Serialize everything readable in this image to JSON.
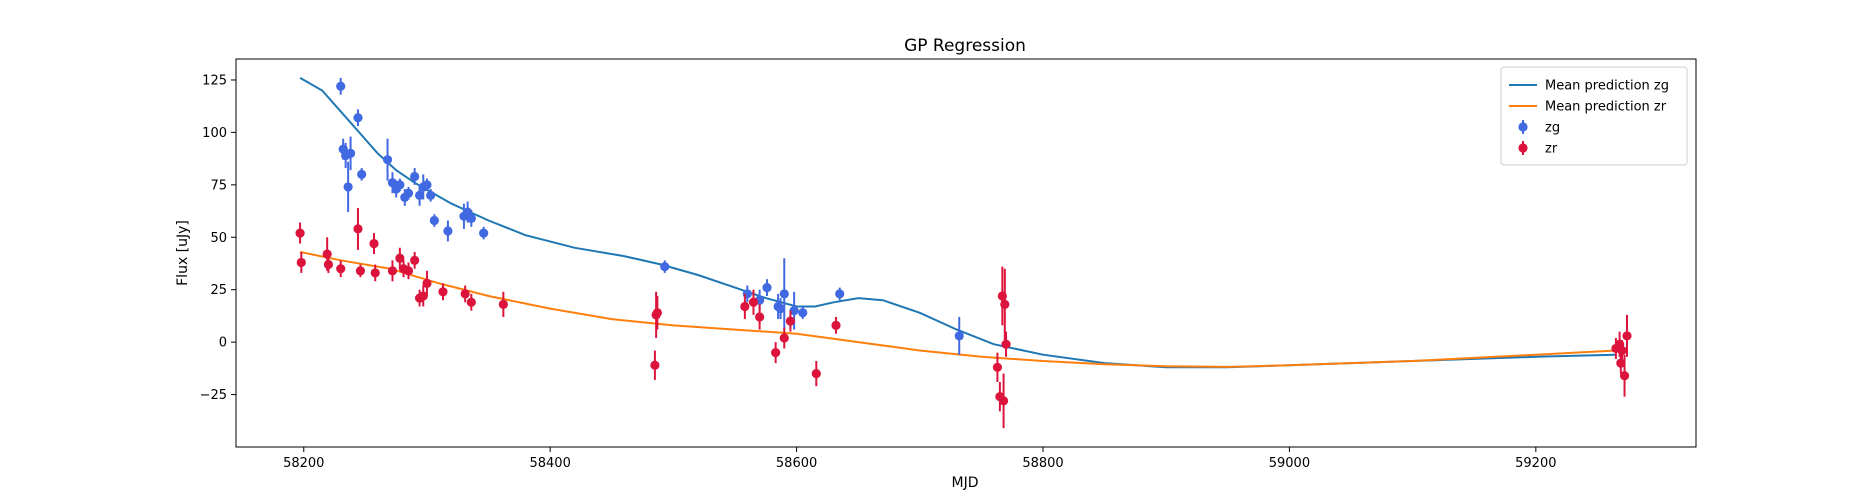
{
  "chart_data": {
    "type": "scatter",
    "title": "GP Regression",
    "xlabel": "MJD",
    "ylabel": "Flux [uJy]",
    "xlim": [
      58145,
      59330
    ],
    "ylim": [
      -50,
      135
    ],
    "xticks": [
      58200,
      58400,
      58600,
      58800,
      59000,
      59200
    ],
    "yticks": [
      -25,
      0,
      25,
      50,
      75,
      100,
      125
    ],
    "grid": false,
    "legend_position": "top-right",
    "legend": [
      {
        "label": "Mean prediction zg",
        "kind": "line",
        "color": "#1f77b4"
      },
      {
        "label": "Mean prediction zr",
        "kind": "line",
        "color": "#ff7f0e"
      },
      {
        "label": "zg",
        "kind": "marker",
        "color": "#4169e1"
      },
      {
        "label": "zr",
        "kind": "marker",
        "color": "#dc143c"
      }
    ],
    "lines": [
      {
        "name": "Mean prediction zg",
        "color": "#1f77b4",
        "points": [
          [
            58197,
            126
          ],
          [
            58215,
            120
          ],
          [
            58230,
            110
          ],
          [
            58245,
            100
          ],
          [
            58260,
            90
          ],
          [
            58275,
            82
          ],
          [
            58290,
            76
          ],
          [
            58305,
            71
          ],
          [
            58320,
            66
          ],
          [
            58335,
            62
          ],
          [
            58350,
            58
          ],
          [
            58380,
            51
          ],
          [
            58420,
            45
          ],
          [
            58460,
            41
          ],
          [
            58490,
            37
          ],
          [
            58520,
            32
          ],
          [
            58550,
            26
          ],
          [
            58575,
            21
          ],
          [
            58600,
            17
          ],
          [
            58615,
            17
          ],
          [
            58630,
            19
          ],
          [
            58650,
            21
          ],
          [
            58670,
            20
          ],
          [
            58700,
            14
          ],
          [
            58730,
            6
          ],
          [
            58760,
            -1
          ],
          [
            58800,
            -6
          ],
          [
            58850,
            -10
          ],
          [
            58900,
            -12
          ],
          [
            58950,
            -12
          ],
          [
            59000,
            -11
          ],
          [
            59100,
            -9
          ],
          [
            59200,
            -7
          ],
          [
            59265,
            -6
          ]
        ]
      },
      {
        "name": "Mean prediction zr",
        "color": "#ff7f0e",
        "points": [
          [
            58197,
            43
          ],
          [
            58230,
            39
          ],
          [
            58270,
            35
          ],
          [
            58310,
            28
          ],
          [
            58350,
            22
          ],
          [
            58400,
            16
          ],
          [
            58450,
            11
          ],
          [
            58500,
            8
          ],
          [
            58550,
            6
          ],
          [
            58600,
            4
          ],
          [
            58650,
            0
          ],
          [
            58700,
            -4
          ],
          [
            58750,
            -7
          ],
          [
            58800,
            -9
          ],
          [
            58850,
            -10.5
          ],
          [
            58900,
            -11.5
          ],
          [
            58950,
            -11.8
          ],
          [
            59000,
            -11
          ],
          [
            59100,
            -9
          ],
          [
            59200,
            -6
          ],
          [
            59265,
            -4
          ]
        ]
      }
    ],
    "series": [
      {
        "name": "zg",
        "color": "#4169e1",
        "points": [
          [
            58230,
            122,
            4
          ],
          [
            58232,
            92,
            5
          ],
          [
            58234,
            89,
            6
          ],
          [
            58236,
            74,
            12
          ],
          [
            58238,
            90,
            8
          ],
          [
            58244,
            107,
            4
          ],
          [
            58247,
            80,
            3
          ],
          [
            58268,
            87,
            10
          ],
          [
            58272,
            76,
            5
          ],
          [
            58275,
            73,
            4
          ],
          [
            58278,
            75,
            3
          ],
          [
            58282,
            69,
            4
          ],
          [
            58285,
            71,
            3
          ],
          [
            58290,
            79,
            4
          ],
          [
            58294,
            70,
            5
          ],
          [
            58297,
            74,
            6
          ],
          [
            58300,
            75,
            3
          ],
          [
            58303,
            70,
            3
          ],
          [
            58306,
            58,
            3
          ],
          [
            58317,
            53,
            5
          ],
          [
            58330,
            60,
            6
          ],
          [
            58333,
            62,
            5
          ],
          [
            58336,
            59,
            4
          ],
          [
            58346,
            52,
            3
          ],
          [
            58493,
            36,
            3
          ],
          [
            58560,
            23,
            4
          ],
          [
            58570,
            20,
            5
          ],
          [
            58576,
            26,
            4
          ],
          [
            58585,
            17,
            6
          ],
          [
            58587,
            16,
            5
          ],
          [
            58590,
            23,
            17
          ],
          [
            58598,
            15,
            9
          ],
          [
            58605,
            14,
            3
          ],
          [
            58635,
            23,
            3
          ],
          [
            58732,
            3,
            9
          ]
        ]
      },
      {
        "name": "zr",
        "color": "#dc143c",
        "points": [
          [
            58197,
            52,
            5
          ],
          [
            58198,
            38,
            5
          ],
          [
            58219,
            42,
            8
          ],
          [
            58220,
            37,
            4
          ],
          [
            58230,
            35,
            4
          ],
          [
            58244,
            54,
            10
          ],
          [
            58246,
            34,
            3
          ],
          [
            58257,
            47,
            5
          ],
          [
            58258,
            33,
            4
          ],
          [
            58272,
            34,
            5
          ],
          [
            58278,
            40,
            5
          ],
          [
            58281,
            35,
            4
          ],
          [
            58285,
            34,
            4
          ],
          [
            58290,
            39,
            4
          ],
          [
            58294,
            21,
            4
          ],
          [
            58297,
            22,
            5
          ],
          [
            58300,
            28,
            6
          ],
          [
            58313,
            24,
            4
          ],
          [
            58331,
            23,
            4
          ],
          [
            58336,
            19,
            4
          ],
          [
            58362,
            18,
            6
          ],
          [
            58485,
            -11,
            7
          ],
          [
            58486,
            13,
            11
          ],
          [
            58487,
            14,
            8
          ],
          [
            58558,
            17,
            6
          ],
          [
            58565,
            19,
            6
          ],
          [
            58570,
            12,
            6
          ],
          [
            58583,
            -5,
            5
          ],
          [
            58590,
            2,
            5
          ],
          [
            58595,
            10,
            5
          ],
          [
            58616,
            -15,
            6
          ],
          [
            58632,
            8,
            4
          ],
          [
            58763,
            -12,
            7
          ],
          [
            58765,
            -26,
            7
          ],
          [
            58767,
            22,
            14
          ],
          [
            58768,
            -28,
            13
          ],
          [
            58769,
            18,
            17
          ],
          [
            58770,
            -1,
            6
          ],
          [
            59265,
            -3,
            5
          ],
          [
            59268,
            -1,
            6
          ],
          [
            59269,
            -10,
            5
          ],
          [
            59270,
            -4,
            5
          ],
          [
            59272,
            -16,
            10
          ],
          [
            59274,
            3,
            10
          ]
        ]
      }
    ]
  }
}
